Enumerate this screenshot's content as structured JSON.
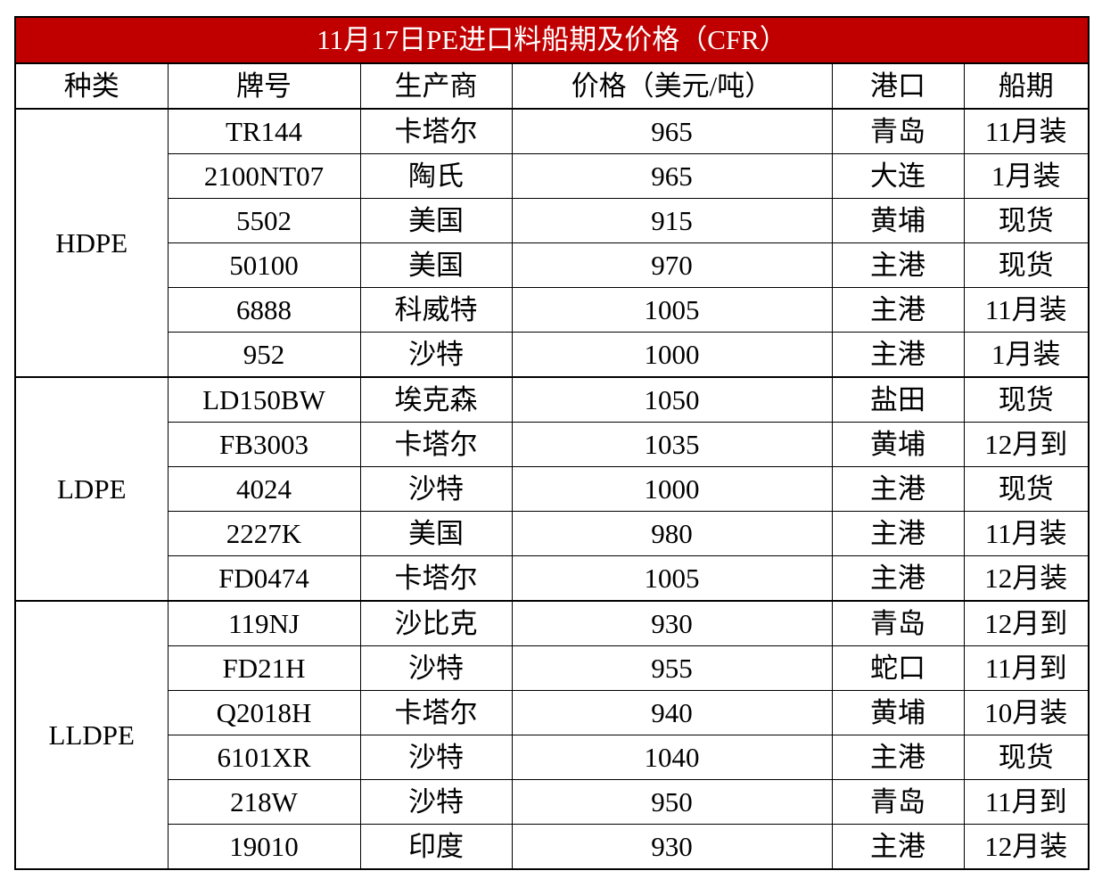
{
  "title": "11月17日PE进口料船期及价格（CFR）",
  "header": [
    "种类",
    "牌号",
    "生产商",
    "价格（美元/吨）",
    "港口",
    "船期"
  ],
  "groups": [
    {
      "category": "HDPE",
      "rows": [
        [
          "TR144",
          "卡塔尔",
          965,
          "青岛",
          "11月装"
        ],
        [
          "2100NT07",
          "陶氏",
          965,
          "大连",
          "1月装"
        ],
        [
          "5502",
          "美国",
          915,
          "黄埔",
          "现货"
        ],
        [
          "50100",
          "美国",
          970,
          "主港",
          "现货"
        ],
        [
          "6888",
          "科威特",
          1005,
          "主港",
          "11月装"
        ],
        [
          "952",
          "沙特",
          1000,
          "主港",
          "1月装"
        ]
      ]
    },
    {
      "category": "LDPE",
      "rows": [
        [
          "LD150BW",
          "埃克森",
          1050,
          "盐田",
          "现货"
        ],
        [
          "FB3003",
          "卡塔尔",
          1035,
          "黄埔",
          "12月到"
        ],
        [
          "4024",
          "沙特",
          1000,
          "主港",
          "现货"
        ],
        [
          "2227K",
          "美国",
          980,
          "主港",
          "11月装"
        ],
        [
          "FD0474",
          "卡塔尔",
          1005,
          "主港",
          "12月装"
        ]
      ]
    },
    {
      "category": "LLDPE",
      "rows": [
        [
          "119NJ",
          "沙比克",
          930,
          "青岛",
          "12月到"
        ],
        [
          "FD21H",
          "沙特",
          955,
          "蛇口",
          "11月到"
        ],
        [
          "Q2018H",
          "卡塔尔",
          940,
          "黄埔",
          "10月装"
        ],
        [
          "6101XR",
          "沙特",
          1040,
          "主港",
          "现货"
        ],
        [
          "218W",
          "沙特",
          950,
          "青岛",
          "11月到"
        ],
        [
          "19010",
          "印度",
          930,
          "主港",
          "12月装"
        ]
      ]
    }
  ]
}
